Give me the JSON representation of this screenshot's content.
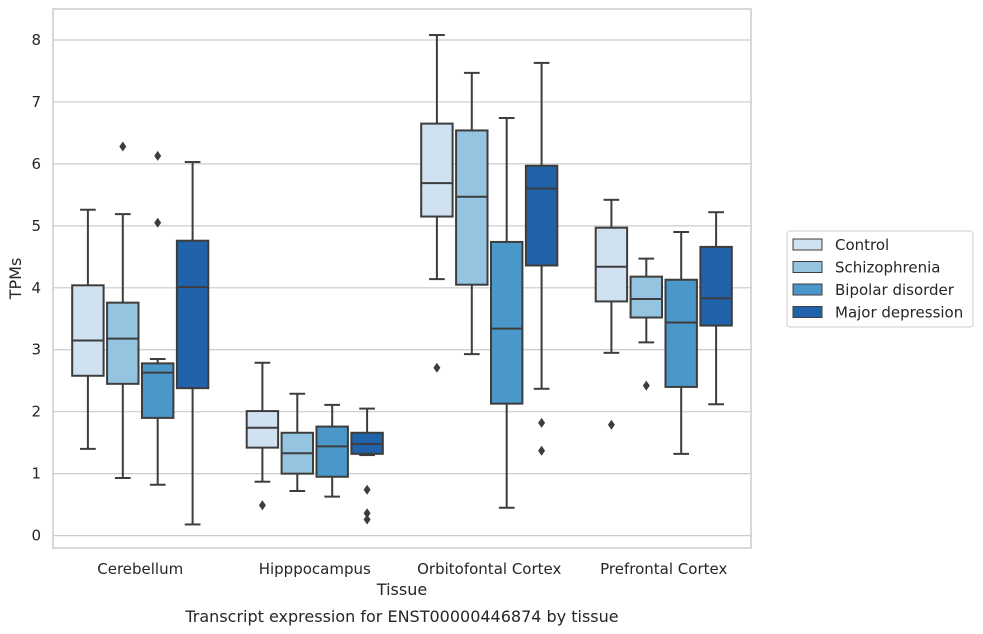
{
  "chart_data": {
    "type": "boxplot",
    "title": "",
    "caption": "Transcript expression for ENST00000446874 by tissue",
    "xlabel": "Tissue",
    "ylabel": "TPMs",
    "ylim": [
      -0.2,
      8.5
    ],
    "yticks": [
      0,
      1,
      2,
      3,
      4,
      5,
      6,
      7,
      8
    ],
    "grid": true,
    "legend_position": "right",
    "categories": [
      "Cerebellum",
      "Hipppocampus",
      "Orbitofontal Cortex",
      "Prefrontal Cortex"
    ],
    "series": [
      {
        "name": "Control",
        "color": "#d0e1f2",
        "boxes": [
          {
            "min": 1.4,
            "q1": 2.58,
            "median": 3.15,
            "q3": 4.04,
            "max": 5.26,
            "outliers": []
          },
          {
            "min": 0.87,
            "q1": 1.42,
            "median": 1.74,
            "q3": 2.01,
            "max": 2.79,
            "outliers": [
              0.49
            ]
          },
          {
            "min": 4.14,
            "q1": 5.15,
            "median": 5.69,
            "q3": 6.65,
            "max": 8.08,
            "outliers": [
              2.71
            ]
          },
          {
            "min": 2.95,
            "q1": 3.78,
            "median": 4.34,
            "q3": 4.97,
            "max": 5.42,
            "outliers": [
              1.79
            ]
          }
        ]
      },
      {
        "name": "Schizophrenia",
        "color": "#94c4df",
        "boxes": [
          {
            "min": 0.93,
            "q1": 2.45,
            "median": 3.18,
            "q3": 3.76,
            "max": 5.19,
            "outliers": [
              6.28
            ]
          },
          {
            "min": 0.72,
            "q1": 1.0,
            "median": 1.33,
            "q3": 1.66,
            "max": 2.29,
            "outliers": []
          },
          {
            "min": 2.93,
            "q1": 4.05,
            "median": 5.47,
            "q3": 6.54,
            "max": 7.47,
            "outliers": []
          },
          {
            "min": 3.12,
            "q1": 3.52,
            "median": 3.82,
            "q3": 4.18,
            "max": 4.47,
            "outliers": [
              2.42
            ]
          }
        ]
      },
      {
        "name": "Bipolar disorder",
        "color": "#4a98c9",
        "boxes": [
          {
            "min": 0.82,
            "q1": 1.9,
            "median": 2.63,
            "q3": 2.78,
            "max": 2.85,
            "outliers": [
              5.05,
              6.13
            ]
          },
          {
            "min": 0.63,
            "q1": 0.95,
            "median": 1.44,
            "q3": 1.76,
            "max": 2.11,
            "outliers": []
          },
          {
            "min": 0.45,
            "q1": 2.13,
            "median": 3.34,
            "q3": 4.74,
            "max": 6.74,
            "outliers": []
          },
          {
            "min": 1.32,
            "q1": 2.4,
            "median": 3.44,
            "q3": 4.13,
            "max": 4.9,
            "outliers": []
          }
        ]
      },
      {
        "name": "Major depression",
        "color": "#2163aa",
        "boxes": [
          {
            "min": 0.18,
            "q1": 2.38,
            "median": 4.01,
            "q3": 4.76,
            "max": 6.03,
            "outliers": []
          },
          {
            "min": 1.3,
            "q1": 1.32,
            "median": 1.48,
            "q3": 1.66,
            "max": 2.05,
            "outliers": [
              0.74,
              0.36,
              0.26
            ]
          },
          {
            "min": 2.37,
            "q1": 4.36,
            "median": 5.6,
            "q3": 5.97,
            "max": 7.63,
            "outliers": [
              1.82,
              1.37
            ]
          },
          {
            "min": 2.12,
            "q1": 3.39,
            "median": 3.83,
            "q3": 4.66,
            "max": 5.22,
            "outliers": []
          }
        ]
      }
    ]
  }
}
